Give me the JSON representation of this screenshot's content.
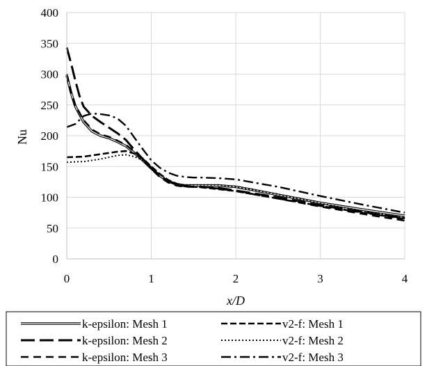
{
  "chart_data": {
    "type": "line",
    "title": "",
    "xlabel": "x/D",
    "ylabel": "Nu",
    "xlim": [
      0,
      4
    ],
    "ylim": [
      0,
      400
    ],
    "xticks": [
      "0",
      "1",
      "2",
      "3",
      "4"
    ],
    "yticks": [
      "0",
      "50",
      "100",
      "150",
      "200",
      "250",
      "300",
      "350",
      "400"
    ],
    "grid": true,
    "legend_position": "bottom",
    "series": [
      {
        "name": "k-epsilon: Mesh 1",
        "style": "double",
        "color": "#000000",
        "points": [
          [
            0,
            298
          ],
          [
            0.05,
            270
          ],
          [
            0.1,
            248
          ],
          [
            0.2,
            222
          ],
          [
            0.3,
            207
          ],
          [
            0.4,
            200
          ],
          [
            0.5,
            196
          ],
          [
            0.6,
            190
          ],
          [
            0.7,
            183
          ],
          [
            0.8,
            172
          ],
          [
            0.9,
            160
          ],
          [
            1.0,
            147
          ],
          [
            1.1,
            135
          ],
          [
            1.2,
            126
          ],
          [
            1.3,
            121
          ],
          [
            1.4,
            119
          ],
          [
            1.5,
            119
          ],
          [
            1.6,
            119
          ],
          [
            1.8,
            119
          ],
          [
            2.0,
            117
          ],
          [
            2.2,
            112
          ],
          [
            2.5,
            104
          ],
          [
            3.0,
            91
          ],
          [
            3.5,
            80
          ],
          [
            4.0,
            70
          ]
        ]
      },
      {
        "name": "v2-f: Mesh 1",
        "style": "dash",
        "color": "#000000",
        "points": [
          [
            0,
            165
          ],
          [
            0.2,
            166
          ],
          [
            0.4,
            170
          ],
          [
            0.6,
            174
          ],
          [
            0.7,
            175
          ],
          [
            0.8,
            171
          ],
          [
            0.9,
            163
          ],
          [
            1.0,
            150
          ],
          [
            1.1,
            138
          ],
          [
            1.2,
            128
          ],
          [
            1.3,
            122
          ],
          [
            1.4,
            119
          ],
          [
            1.5,
            117
          ],
          [
            1.6,
            116
          ],
          [
            1.8,
            113
          ],
          [
            2.0,
            110
          ],
          [
            2.5,
            98
          ],
          [
            3.0,
            86
          ],
          [
            3.5,
            75
          ],
          [
            4.0,
            65
          ]
        ]
      },
      {
        "name": "k-epsilon: Mesh 2",
        "style": "longdash",
        "color": "#000000",
        "points": [
          [
            0,
            343
          ],
          [
            0.05,
            318
          ],
          [
            0.1,
            290
          ],
          [
            0.15,
            265
          ],
          [
            0.2,
            247
          ],
          [
            0.3,
            232
          ],
          [
            0.4,
            222
          ],
          [
            0.5,
            213
          ],
          [
            0.6,
            204
          ],
          [
            0.7,
            193
          ],
          [
            0.8,
            177
          ],
          [
            0.9,
            162
          ],
          [
            1.0,
            148
          ],
          [
            1.1,
            135
          ],
          [
            1.2,
            126
          ],
          [
            1.3,
            121
          ],
          [
            1.4,
            118
          ],
          [
            1.5,
            117
          ],
          [
            1.6,
            117
          ],
          [
            1.8,
            115
          ],
          [
            2.0,
            111
          ],
          [
            2.5,
            100
          ],
          [
            3.0,
            87
          ],
          [
            3.5,
            76
          ],
          [
            4.0,
            66
          ]
        ]
      },
      {
        "name": "v2-f: Mesh 2",
        "style": "dot",
        "color": "#000000",
        "points": [
          [
            0,
            157
          ],
          [
            0.2,
            158
          ],
          [
            0.4,
            162
          ],
          [
            0.6,
            168
          ],
          [
            0.7,
            169
          ],
          [
            0.8,
            166
          ],
          [
            0.9,
            160
          ],
          [
            1.0,
            148
          ],
          [
            1.1,
            137
          ],
          [
            1.2,
            127
          ],
          [
            1.3,
            122
          ],
          [
            1.4,
            120
          ],
          [
            1.5,
            120
          ],
          [
            1.6,
            120
          ],
          [
            1.8,
            120
          ],
          [
            2.0,
            117
          ],
          [
            2.5,
            105
          ],
          [
            3.0,
            90
          ],
          [
            3.5,
            78
          ],
          [
            4.0,
            67
          ]
        ]
      },
      {
        "name": "k-epsilon: Mesh 3",
        "style": "dash2",
        "color": "#000000",
        "points": [
          [
            0,
            300
          ],
          [
            0.05,
            272
          ],
          [
            0.1,
            250
          ],
          [
            0.2,
            225
          ],
          [
            0.3,
            210
          ],
          [
            0.4,
            202
          ],
          [
            0.5,
            198
          ],
          [
            0.6,
            192
          ],
          [
            0.7,
            185
          ],
          [
            0.8,
            174
          ],
          [
            0.9,
            161
          ],
          [
            1.0,
            146
          ],
          [
            1.1,
            133
          ],
          [
            1.2,
            124
          ],
          [
            1.3,
            119
          ],
          [
            1.4,
            117
          ],
          [
            1.5,
            117
          ],
          [
            1.6,
            117
          ],
          [
            1.8,
            114
          ],
          [
            2.0,
            110
          ],
          [
            2.5,
            98
          ],
          [
            3.0,
            85
          ],
          [
            3.5,
            73
          ],
          [
            4.0,
            62
          ]
        ]
      },
      {
        "name": "v2-f: Mesh 3",
        "style": "dashdot",
        "color": "#000000",
        "points": [
          [
            0,
            214
          ],
          [
            0.1,
            219
          ],
          [
            0.2,
            232
          ],
          [
            0.3,
            236
          ],
          [
            0.4,
            235
          ],
          [
            0.5,
            233
          ],
          [
            0.6,
            228
          ],
          [
            0.7,
            216
          ],
          [
            0.8,
            197
          ],
          [
            0.9,
            178
          ],
          [
            1.0,
            160
          ],
          [
            1.1,
            148
          ],
          [
            1.2,
            140
          ],
          [
            1.3,
            135
          ],
          [
            1.4,
            133
          ],
          [
            1.5,
            132
          ],
          [
            1.6,
            132
          ],
          [
            1.8,
            131
          ],
          [
            2.0,
            129
          ],
          [
            2.5,
            117
          ],
          [
            3.0,
            102
          ],
          [
            3.5,
            88
          ],
          [
            4.0,
            75
          ]
        ]
      }
    ]
  }
}
